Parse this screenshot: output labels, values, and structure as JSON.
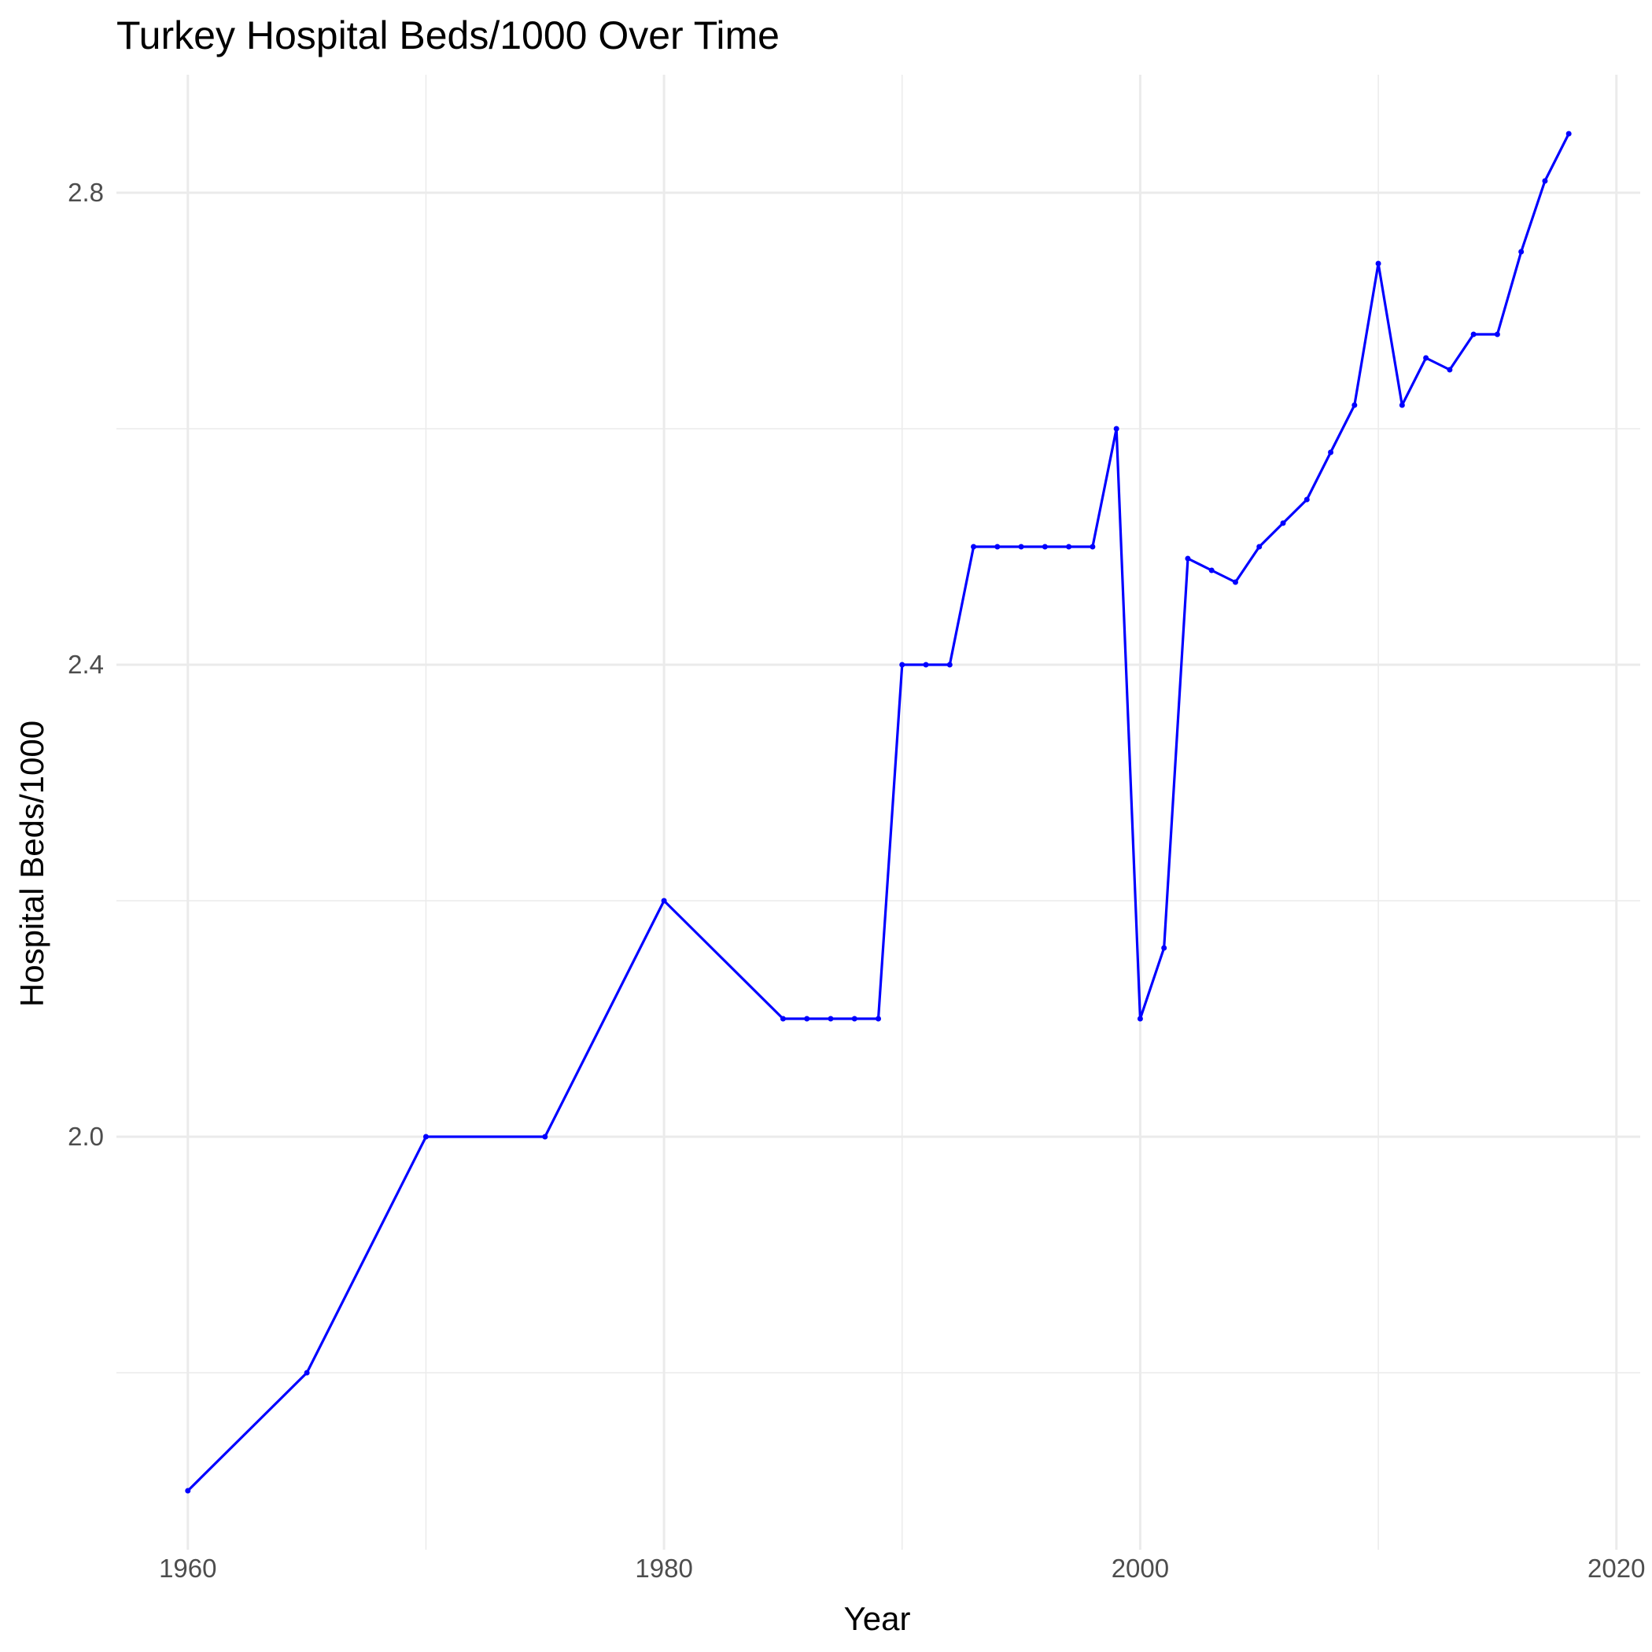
{
  "chart_data": {
    "type": "line",
    "title": "Turkey Hospital Beds/1000 Over Time",
    "xlabel": "Year",
    "ylabel": "Hospital Beds/1000",
    "xlim": [
      1957,
      2021
    ],
    "ylim": [
      1.65,
      2.9
    ],
    "x_ticks": [
      1960,
      1980,
      2000,
      2020
    ],
    "x_tick_labels": [
      "1960",
      "1980",
      "2000",
      "2020"
    ],
    "x_minor_ticks": [
      1970,
      1990,
      2010
    ],
    "y_ticks": [
      2.0,
      2.4,
      2.8
    ],
    "y_tick_labels": [
      "2.0",
      "2.4",
      "2.8"
    ],
    "y_minor_ticks": [
      1.8,
      2.2,
      2.6
    ],
    "grid": true,
    "legend": "none",
    "line_color": "#0000ff",
    "point_color": "#0000ff",
    "series": [
      {
        "x": [
          1960,
          1965,
          1970,
          1975,
          1980,
          1985,
          1986,
          1987,
          1988,
          1989,
          1990,
          1991,
          1992,
          1993,
          1994,
          1995,
          1996,
          1997,
          1998,
          1999,
          2000,
          2001,
          2002,
          2003,
          2004,
          2005,
          2006,
          2007,
          2008,
          2009,
          2010,
          2011,
          2012,
          2013,
          2014,
          2015,
          2016,
          2017,
          2018
        ],
        "y": [
          1.7,
          1.8,
          2.0,
          2.0,
          2.2,
          2.1,
          2.1,
          2.1,
          2.1,
          2.1,
          2.4,
          2.4,
          2.4,
          2.5,
          2.5,
          2.5,
          2.5,
          2.5,
          2.5,
          2.6,
          2.1,
          2.16,
          2.49,
          2.48,
          2.47,
          2.5,
          2.52,
          2.54,
          2.58,
          2.62,
          2.74,
          2.62,
          2.66,
          2.65,
          2.68,
          2.68,
          2.75,
          2.81,
          2.85
        ]
      }
    ]
  }
}
